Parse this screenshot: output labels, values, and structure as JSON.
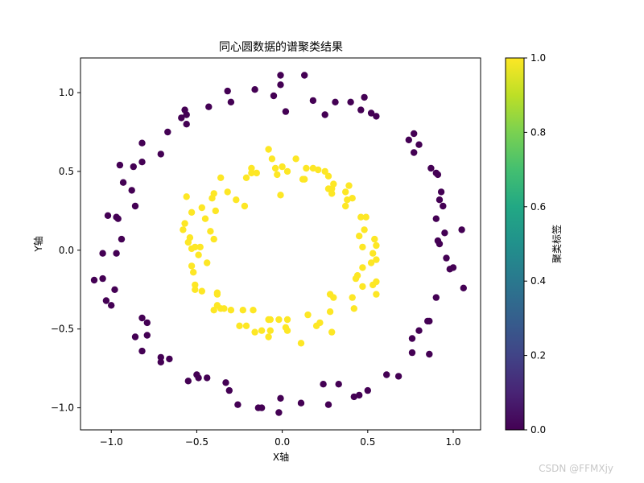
{
  "chart_data": {
    "type": "scatter",
    "title": "同心圆数据的谱聚类结果",
    "xlabel": "X轴",
    "ylabel": "Y轴",
    "xlim": [
      -1.18,
      1.16
    ],
    "ylim": [
      -1.14,
      1.22
    ],
    "xticks": [
      -1.0,
      -0.5,
      0.0,
      0.5,
      1.0
    ],
    "yticks": [
      -1.0,
      -0.5,
      0.0,
      0.5,
      1.0
    ],
    "colorbar": {
      "label": "聚类标签",
      "range": [
        0,
        1
      ],
      "ticks": [
        0.0,
        0.2,
        0.4,
        0.6,
        0.8,
        1.0
      ],
      "colormap": "viridis"
    },
    "grid": false,
    "series": [
      {
        "label_value": 0,
        "color": "#440154",
        "points": [
          [
            -0.01,
            1.11
          ],
          [
            -0.01,
            1.05
          ],
          [
            0.13,
            1.11
          ],
          [
            -0.16,
            1.02
          ],
          [
            -0.32,
            1.01
          ],
          [
            -0.05,
            0.98
          ],
          [
            -0.3,
            0.94
          ],
          [
            -0.43,
            0.91
          ],
          [
            -0.57,
            0.89
          ],
          [
            -0.56,
            0.86
          ],
          [
            -0.59,
            0.84
          ],
          [
            -0.56,
            0.8
          ],
          [
            0.02,
            0.88
          ],
          [
            0.18,
            0.95
          ],
          [
            0.31,
            0.94
          ],
          [
            0.4,
            0.94
          ],
          [
            0.48,
            0.97
          ],
          [
            0.46,
            0.89
          ],
          [
            0.52,
            0.87
          ],
          [
            0.55,
            0.85
          ],
          [
            0.25,
            0.86
          ],
          [
            -0.67,
            0.75
          ],
          [
            -0.71,
            0.61
          ],
          [
            -0.82,
            0.68
          ],
          [
            -0.82,
            0.56
          ],
          [
            -0.87,
            0.53
          ],
          [
            -0.95,
            0.54
          ],
          [
            -0.93,
            0.43
          ],
          [
            -0.88,
            0.38
          ],
          [
            -0.86,
            0.28
          ],
          [
            -1.02,
            0.22
          ],
          [
            -0.97,
            0.21
          ],
          [
            -0.96,
            0.2
          ],
          [
            -0.94,
            0.07
          ],
          [
            -1.05,
            -0.02
          ],
          [
            -0.97,
            -0.02
          ],
          [
            -1.1,
            -0.19
          ],
          [
            -1.05,
            -0.18
          ],
          [
            -0.98,
            -0.25
          ],
          [
            -1.03,
            -0.32
          ],
          [
            -1.0,
            -0.35
          ],
          [
            -0.82,
            -0.43
          ],
          [
            -0.79,
            -0.46
          ],
          [
            -0.79,
            -0.54
          ],
          [
            -0.86,
            -0.55
          ],
          [
            -0.82,
            -0.64
          ],
          [
            -0.71,
            -0.68
          ],
          [
            -0.71,
            -0.71
          ],
          [
            -0.66,
            -0.69
          ],
          [
            -0.55,
            -0.83
          ],
          [
            -0.49,
            -0.81
          ],
          [
            -0.5,
            -0.79
          ],
          [
            -0.44,
            -0.81
          ],
          [
            -0.33,
            -0.84
          ],
          [
            -0.31,
            -0.89
          ],
          [
            -0.26,
            -0.98
          ],
          [
            -0.14,
            -1.0
          ],
          [
            -0.12,
            -1.0
          ],
          [
            -0.01,
            -0.94
          ],
          [
            -0.02,
            -1.03
          ],
          [
            0.11,
            -0.97
          ],
          [
            0.24,
            -0.85
          ],
          [
            0.27,
            -0.98
          ],
          [
            0.33,
            -0.85
          ],
          [
            0.42,
            -0.93
          ],
          [
            0.45,
            -0.92
          ],
          [
            0.5,
            -0.89
          ],
          [
            0.61,
            -0.79
          ],
          [
            0.68,
            -0.8
          ],
          [
            0.77,
            0.74
          ],
          [
            0.74,
            0.7
          ],
          [
            0.77,
            0.62
          ],
          [
            0.8,
            0.67
          ],
          [
            0.87,
            0.52
          ],
          [
            0.9,
            0.49
          ],
          [
            0.91,
            0.48
          ],
          [
            0.93,
            0.37
          ],
          [
            0.92,
            0.32
          ],
          [
            0.9,
            0.2
          ],
          [
            0.94,
            0.28
          ],
          [
            0.91,
            0.06
          ],
          [
            0.95,
            0.11
          ],
          [
            0.92,
            0.04
          ],
          [
            1.05,
            0.13
          ],
          [
            0.96,
            -0.05
          ],
          [
            0.98,
            -0.12
          ],
          [
            1.0,
            -0.11
          ],
          [
            1.06,
            -0.24
          ],
          [
            0.9,
            -0.3
          ],
          [
            0.86,
            -0.45
          ],
          [
            0.85,
            -0.45
          ],
          [
            0.8,
            -0.51
          ],
          [
            0.76,
            -0.56
          ],
          [
            0.76,
            -0.65
          ],
          [
            0.86,
            -0.66
          ]
        ]
      },
      {
        "label_value": 1,
        "color": "#fde725",
        "points": [
          [
            -0.21,
            0.46
          ],
          [
            -0.18,
            0.49
          ],
          [
            -0.18,
            0.52
          ],
          [
            -0.15,
            0.49
          ],
          [
            -0.08,
            0.64
          ],
          [
            -0.06,
            0.58
          ],
          [
            0.0,
            0.53
          ],
          [
            -0.04,
            0.52
          ],
          [
            -0.01,
            0.35
          ],
          [
            -0.03,
            0.48
          ],
          [
            0.03,
            0.5
          ],
          [
            0.08,
            0.58
          ],
          [
            0.14,
            0.52
          ],
          [
            0.18,
            0.52
          ],
          [
            0.21,
            0.51
          ],
          [
            0.25,
            0.5
          ],
          [
            0.27,
            0.47
          ],
          [
            0.12,
            0.45
          ],
          [
            0.13,
            0.45
          ],
          [
            -0.36,
            0.46
          ],
          [
            -0.32,
            0.37
          ],
          [
            -0.4,
            0.36
          ],
          [
            -0.41,
            0.33
          ],
          [
            -0.45,
            0.2
          ],
          [
            -0.47,
            0.27
          ],
          [
            -0.56,
            0.34
          ],
          [
            -0.53,
            0.24
          ],
          [
            -0.39,
            0.25
          ],
          [
            -0.27,
            0.32
          ],
          [
            -0.22,
            0.28
          ],
          [
            0.27,
            0.39
          ],
          [
            0.29,
            0.36
          ],
          [
            0.3,
            0.42
          ],
          [
            0.29,
            0.39
          ],
          [
            0.39,
            0.41
          ],
          [
            0.37,
            0.37
          ],
          [
            0.41,
            0.33
          ],
          [
            0.38,
            0.32
          ],
          [
            0.37,
            0.28
          ],
          [
            -0.57,
            0.17
          ],
          [
            -0.58,
            0.13
          ],
          [
            -0.54,
            0.08
          ],
          [
            -0.55,
            0.05
          ],
          [
            -0.51,
            0.02
          ],
          [
            -0.53,
            0.01
          ],
          [
            -0.49,
            -0.03
          ],
          [
            -0.48,
            0.02
          ],
          [
            -0.4,
            0.07
          ],
          [
            -0.42,
            0.12
          ],
          [
            -0.53,
            -0.1
          ],
          [
            -0.52,
            -0.14
          ],
          [
            -0.44,
            -0.08
          ],
          [
            0.46,
            0.21
          ],
          [
            0.49,
            0.21
          ],
          [
            0.48,
            0.13
          ],
          [
            0.45,
            0.09
          ],
          [
            0.47,
            0.02
          ],
          [
            0.54,
            0.07
          ],
          [
            0.55,
            0.03
          ],
          [
            0.53,
            -0.02
          ],
          [
            0.55,
            -0.06
          ],
          [
            0.52,
            -0.08
          ],
          [
            0.47,
            -0.11
          ],
          [
            0.44,
            -0.16
          ],
          [
            0.43,
            -0.18
          ],
          [
            0.47,
            -0.23
          ],
          [
            0.53,
            -0.22
          ],
          [
            0.55,
            -0.2
          ],
          [
            0.55,
            -0.28
          ],
          [
            0.41,
            -0.3
          ],
          [
            0.42,
            -0.37
          ],
          [
            -0.51,
            -0.22
          ],
          [
            -0.51,
            -0.25
          ],
          [
            -0.47,
            -0.26
          ],
          [
            -0.38,
            -0.27
          ],
          [
            -0.38,
            -0.28
          ],
          [
            -0.38,
            -0.35
          ],
          [
            -0.4,
            -0.38
          ],
          [
            -0.36,
            -0.37
          ],
          [
            -0.34,
            -0.37
          ],
          [
            -0.3,
            -0.38
          ],
          [
            -0.23,
            -0.38
          ],
          [
            -0.17,
            -0.38
          ],
          [
            -0.25,
            -0.48
          ],
          [
            -0.21,
            -0.48
          ],
          [
            -0.16,
            -0.52
          ],
          [
            -0.12,
            -0.51
          ],
          [
            -0.08,
            -0.55
          ],
          [
            -0.07,
            -0.51
          ],
          [
            -0.07,
            -0.44
          ],
          [
            -0.02,
            -0.44
          ],
          [
            0.02,
            -0.49
          ],
          [
            0.03,
            -0.51
          ],
          [
            0.03,
            -0.44
          ],
          [
            0.11,
            -0.59
          ],
          [
            0.15,
            -0.41
          ],
          [
            0.2,
            -0.48
          ],
          [
            0.22,
            -0.46
          ],
          [
            0.28,
            -0.28
          ],
          [
            0.3,
            -0.3
          ],
          [
            0.28,
            -0.39
          ],
          [
            0.29,
            -0.52
          ],
          [
            -0.08,
            -0.44
          ]
        ]
      }
    ]
  },
  "watermark": "CSDN @FFMXjy"
}
